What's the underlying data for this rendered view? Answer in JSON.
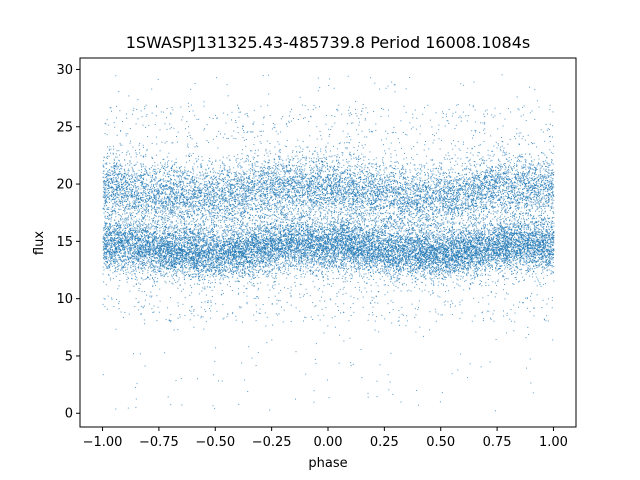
{
  "chart_data": {
    "type": "scatter",
    "title": "1SWASPJ131325.43-485739.8 Period 16008.1084s",
    "xlabel": "phase",
    "ylabel": "flux",
    "xlim": [
      -1.1,
      1.1
    ],
    "ylim": [
      -1.2,
      31.0
    ],
    "x_ticks": [
      -1.0,
      -0.75,
      -0.5,
      -0.25,
      0.0,
      0.25,
      0.5,
      0.75,
      1.0
    ],
    "x_tick_labels": [
      "−1.00",
      "−0.75",
      "−0.50",
      "−0.25",
      "0.00",
      "0.25",
      "0.50",
      "0.75",
      "1.00"
    ],
    "y_ticks": [
      0,
      5,
      10,
      15,
      20,
      25,
      30
    ],
    "y_tick_labels": [
      "0",
      "5",
      "10",
      "15",
      "20",
      "25",
      "30"
    ],
    "grid": false,
    "legend": "none",
    "point_color": "#1f77b4",
    "series": [
      {
        "x": [
          -1.0,
          -0.95,
          -0.9,
          -0.85,
          -0.8,
          -0.75,
          -0.7,
          -0.65,
          -0.6,
          -0.55,
          -0.5,
          -0.45,
          -0.4,
          -0.35,
          -0.3,
          -0.25,
          -0.2,
          -0.15,
          -0.1,
          -0.05,
          0.0,
          0.05,
          0.1,
          0.15,
          0.2,
          0.25,
          0.3,
          0.35,
          0.4,
          0.45,
          0.5,
          0.55,
          0.6,
          0.65,
          0.7,
          0.75,
          0.8,
          0.85,
          0.9,
          0.95,
          1.0
        ],
        "y_center": [
          14.8,
          14.8,
          14.7,
          14.6,
          14.4,
          14.3,
          14.2,
          14.1,
          14.1,
          14.0,
          14.0,
          14.0,
          14.1,
          14.3,
          14.5,
          14.6,
          14.7,
          14.8,
          14.8,
          14.8,
          14.8,
          14.8,
          14.7,
          14.6,
          14.4,
          14.3,
          14.2,
          14.1,
          14.0,
          14.0,
          14.0,
          14.0,
          14.1,
          14.3,
          14.5,
          14.6,
          14.7,
          14.8,
          14.8,
          14.8,
          14.8
        ],
        "y_upper_band": [
          19.8,
          19.8,
          19.6,
          19.4,
          19.2,
          19.0,
          18.9,
          18.8,
          18.8,
          18.8,
          18.9,
          19.0,
          19.2,
          19.4,
          19.6,
          19.7,
          19.8,
          19.8,
          19.8,
          19.8,
          19.8,
          19.8,
          19.6,
          19.4,
          19.2,
          19.0,
          18.9,
          18.8,
          18.8,
          18.8,
          18.9,
          19.0,
          19.2,
          19.4,
          19.6,
          19.7,
          19.8,
          19.8,
          19.8,
          19.8,
          19.8
        ],
        "y_min": 0.2,
        "y_max": 29.6
      }
    ]
  }
}
